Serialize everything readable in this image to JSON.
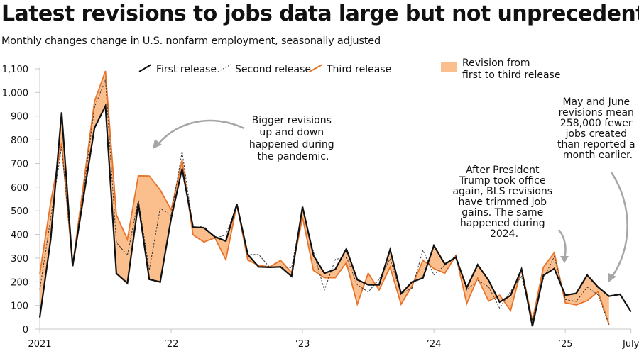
{
  "title": "Latest revisions to jobs data large but not unprecedented",
  "subtitle": "Monthly changes change in U.S. nonfarm employment, seasonally adjusted",
  "colors": {
    "first": "#111111",
    "second": "#333333",
    "third": "#e8742a",
    "band": "#fbbf8e",
    "axis": "#c8c8c8",
    "arrow": "#a6a6a6"
  },
  "legend": {
    "first": "First release",
    "second": "Second release",
    "third": "Third release",
    "band_line1": "Revision from",
    "band_line2": "first to third release"
  },
  "annotations": [
    {
      "id": "pandemic",
      "lines": [
        "Bigger revisions",
        "up and down",
        "happened during",
        "the pandemic."
      ]
    },
    {
      "id": "trump",
      "lines": [
        "After President",
        "Trump took office",
        "again, BLS revisions",
        "have trimmed job",
        "gains. The same",
        "happened during",
        "2024."
      ]
    },
    {
      "id": "mayjune",
      "lines": [
        "May and June",
        "revisions mean",
        "258,000 fewer",
        "jobs created",
        "than reported a",
        "month earlier."
      ]
    }
  ],
  "chart_data": {
    "type": "line",
    "title": "Latest revisions to jobs data large but not unprecedented",
    "subtitle": "Monthly changes change in U.S. nonfarm employment, seasonally adjusted",
    "xlabel": "",
    "ylabel": "",
    "ylim": [
      0,
      1100
    ],
    "yticks": [
      0,
      100,
      200,
      300,
      400,
      500,
      600,
      700,
      800,
      900,
      1000,
      1100
    ],
    "ytick_labels": [
      "0",
      "100",
      "200",
      "300",
      "400",
      "500",
      "600",
      "700",
      "800",
      "900",
      "1,000",
      "1,100"
    ],
    "xticks": [
      {
        "label": "2021",
        "index": 0
      },
      {
        "label": "’22",
        "index": 12
      },
      {
        "label": "’23",
        "index": 24
      },
      {
        "label": "’24",
        "index": 36
      },
      {
        "label": "’25",
        "index": 48
      },
      {
        "label": "July",
        "index": 54
      }
    ],
    "x_start": "2021-01",
    "x_end": "2025-07",
    "grid": false,
    "legend_position": "top",
    "series": [
      {
        "name": "First release",
        "style": "solid-black",
        "values": [
          49,
          379,
          916,
          266,
          559,
          850,
          943,
          235,
          194,
          531,
          210,
          199,
          467,
          678,
          431,
          428,
          390,
          372,
          528,
          315,
          263,
          261,
          263,
          223,
          517,
          311,
          236,
          253,
          339,
          209,
          187,
          187,
          336,
          150,
          199,
          216,
          353,
          275,
          303,
          175,
          272,
          206,
          114,
          142,
          254,
          12,
          227,
          256,
          143,
          151,
          228,
          177,
          139,
          147,
          73
        ]
      },
      {
        "name": "Second release",
        "style": "dashed",
        "values": [
          166,
          468,
          770,
          278,
          583,
          938,
          1053,
          366,
          312,
          546,
          249,
          510,
          481,
          750,
          428,
          436,
          384,
          398,
          526,
          315,
          315,
          261,
          263,
          260,
          504,
          326,
          165,
          294,
          306,
          187,
          157,
          210,
          297,
          150,
          173,
          333,
          229,
          270,
          310,
          165,
          206,
          179,
          89,
          159,
          223,
          36,
          212,
          307,
          125,
          117,
          177,
          144,
          19,
          null,
          null
        ]
      },
      {
        "name": "Third release",
        "style": "solid-orange",
        "values": [
          233,
          536,
          785,
          269,
          614,
          962,
          1091,
          483,
          379,
          648,
          647,
          588,
          504,
          714,
          398,
          368,
          386,
          293,
          526,
          292,
          269,
          263,
          290,
          239,
          472,
          248,
          217,
          217,
          281,
          105,
          236,
          165,
          262,
          105,
          182,
          290,
          256,
          236,
          310,
          108,
          216,
          118,
          144,
          78,
          255,
          36,
          261,
          323,
          111,
          102,
          120,
          158,
          19,
          null,
          null
        ]
      }
    ],
    "band": {
      "name": "Revision from first to third release",
      "between": [
        "First release",
        "Third release"
      ]
    }
  }
}
